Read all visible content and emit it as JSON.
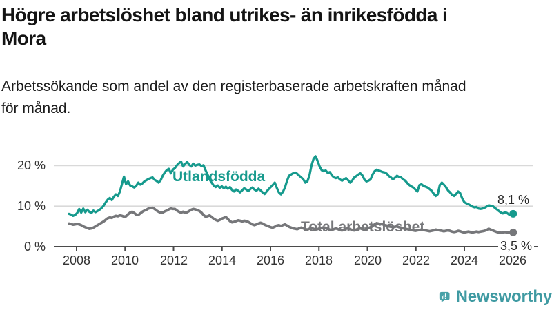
{
  "title": {
    "lines": [
      "Högre arbetslöshet bland utrikes- än inrikesfödda i",
      "Mora"
    ]
  },
  "subtitle": {
    "lines": [
      "Arbetssökande som andel av den registerbaserade arbetskraften månad",
      "för månad."
    ]
  },
  "chart_data": {
    "type": "line",
    "unit": "%",
    "x_range_years": [
      2007.7,
      2026.1
    ],
    "ylim": [
      0,
      24
    ],
    "grid": "horizontal",
    "legend_position": "inline-labels",
    "x_ticks": [
      "2008",
      "2010",
      "2012",
      "2014",
      "2016",
      "2018",
      "2020",
      "2022",
      "2024",
      "2026"
    ],
    "y_ticks": [
      {
        "value": 0,
        "label": "0 %"
      },
      {
        "value": 10,
        "label": "10 %"
      },
      {
        "value": 20,
        "label": "20 %"
      }
    ],
    "series": [
      {
        "name": "Utlandsfödda",
        "color": "#169a8d",
        "end_label": "8,1 %",
        "last_value": 8.1,
        "values": [
          8.1,
          7.9,
          7.6,
          7.8,
          8.3,
          9.3,
          8.4,
          9.4,
          8.5,
          9.1,
          8.6,
          8.3,
          8.9,
          8.5,
          8.8,
          9.1,
          9.5,
          10.1,
          10.9,
          11.6,
          12.0,
          11.5,
          12.3,
          12.9,
          12.5,
          13.6,
          15.5,
          17.3,
          15.4,
          16.1,
          15.1,
          14.9,
          14.6,
          15.0,
          15.8,
          15.3,
          15.6,
          16.1,
          16.4,
          16.7,
          16.9,
          17.1,
          16.5,
          16.2,
          15.8,
          16.4,
          17.5,
          18.3,
          18.9,
          19.2,
          18.1,
          19.0,
          19.4,
          20.1,
          20.6,
          21.0,
          19.8,
          20.4,
          20.9,
          20.2,
          19.8,
          20.5,
          20.0,
          20.2,
          20.3,
          19.9,
          20.1,
          18.9,
          17.8,
          16.6,
          15.8,
          15.1,
          14.7,
          15.1,
          14.5,
          14.9,
          14.4,
          14.8,
          14.3,
          14.7,
          14.0,
          13.6,
          14.1,
          13.8,
          13.4,
          13.9,
          14.4,
          14.1,
          13.7,
          14.2,
          14.6,
          14.1,
          13.8,
          14.3,
          13.9,
          13.4,
          13.0,
          13.6,
          14.2,
          14.7,
          15.2,
          15.8,
          14.5,
          13.4,
          12.9,
          13.5,
          14.6,
          16.2,
          17.5,
          17.8,
          18.1,
          18.3,
          18.0,
          17.5,
          17.1,
          16.6,
          15.8,
          16.1,
          17.5,
          20.0,
          21.6,
          22.3,
          21.2,
          19.8,
          18.9,
          18.6,
          18.8,
          18.2,
          18.4,
          17.6,
          17.1,
          16.9,
          17.1,
          16.6,
          16.3,
          16.6,
          16.9,
          16.4,
          15.8,
          16.3,
          17.1,
          17.4,
          17.8,
          18.1,
          17.6,
          16.6,
          16.1,
          16.3,
          16.6,
          17.8,
          18.6,
          19.0,
          18.8,
          18.6,
          18.4,
          18.3,
          18.0,
          17.4,
          17.1,
          16.6,
          17.0,
          17.5,
          17.2,
          17.1,
          16.6,
          16.3,
          15.7,
          15.2,
          14.9,
          14.6,
          14.1,
          13.6,
          15.2,
          15.4,
          15.0,
          14.8,
          14.6,
          14.2,
          13.8,
          13.1,
          12.5,
          12.9,
          15.2,
          15.8,
          15.3,
          14.7,
          13.9,
          13.4,
          12.8,
          12.5,
          13.0,
          13.6,
          13.2,
          11.9,
          11.0,
          10.7,
          10.5,
          10.2,
          9.9,
          9.7,
          9.8,
          9.4,
          9.3,
          9.4,
          9.6,
          9.9,
          10.2,
          10.1,
          10.0,
          9.6,
          9.2,
          8.8,
          8.4,
          8.2,
          8.5,
          8.3,
          7.9,
          7.8,
          8.1
        ]
      },
      {
        "name": "Total arbetslöshet",
        "color": "#76777a",
        "end_label": "3,5 %",
        "last_value": 3.5,
        "values": [
          5.7,
          5.6,
          5.4,
          5.5,
          5.6,
          5.5,
          5.3,
          5.0,
          4.8,
          4.6,
          4.4,
          4.5,
          4.7,
          5.0,
          5.3,
          5.6,
          5.9,
          6.2,
          6.6,
          7.0,
          7.2,
          7.1,
          7.4,
          7.6,
          7.5,
          7.7,
          7.6,
          7.4,
          7.5,
          8.0,
          8.4,
          8.6,
          8.3,
          7.9,
          7.8,
          8.2,
          8.6,
          8.9,
          9.1,
          9.4,
          9.5,
          9.6,
          9.3,
          8.9,
          8.6,
          8.3,
          8.4,
          8.7,
          8.9,
          9.2,
          9.4,
          9.3,
          9.3,
          8.9,
          8.6,
          8.4,
          8.6,
          8.3,
          8.5,
          8.8,
          9.1,
          9.3,
          9.2,
          9.0,
          8.8,
          8.4,
          7.8,
          7.4,
          7.5,
          7.7,
          7.3,
          6.9,
          6.6,
          6.4,
          6.6,
          6.9,
          7.1,
          7.3,
          6.8,
          6.3,
          6.0,
          6.1,
          6.3,
          6.5,
          6.4,
          6.2,
          6.4,
          6.3,
          6.1,
          5.8,
          5.5,
          5.3,
          5.5,
          5.7,
          5.9,
          5.7,
          5.4,
          5.2,
          5.0,
          4.8,
          4.7,
          4.9,
          5.2,
          5.3,
          5.1,
          5.3,
          5.5,
          5.2,
          4.9,
          4.7,
          4.5,
          4.4,
          4.3,
          4.5,
          4.7,
          4.5,
          4.3,
          4.2,
          4.4,
          4.6,
          4.4,
          4.2,
          4.3,
          4.5,
          4.6,
          4.8,
          4.6,
          4.4,
          4.2,
          4.1,
          4.3,
          4.5,
          4.3,
          4.1,
          4.0,
          4.2,
          4.4,
          4.5,
          4.3,
          4.1,
          4.0,
          4.2,
          4.4,
          4.5,
          4.3,
          4.2,
          4.4,
          4.6,
          4.8,
          5.0,
          5.5,
          5.8,
          5.7,
          5.6,
          5.5,
          5.3,
          5.2,
          5.0,
          4.9,
          4.8,
          4.9,
          5.0,
          4.8,
          4.7,
          4.5,
          4.4,
          4.3,
          4.2,
          4.1,
          4.0,
          3.9,
          4.0,
          4.1,
          4.2,
          4.1,
          4.0,
          3.9,
          3.8,
          3.9,
          4.0,
          4.2,
          4.1,
          4.0,
          3.9,
          3.8,
          3.9,
          4.0,
          3.9,
          3.7,
          3.6,
          3.7,
          3.9,
          3.8,
          3.6,
          3.5,
          3.6,
          3.7,
          3.6,
          3.5,
          3.6,
          3.7,
          3.6,
          3.7,
          3.8,
          3.9,
          4.1,
          4.4,
          4.2,
          4.0,
          3.8,
          3.6,
          3.5,
          3.4,
          3.5,
          3.6,
          3.5,
          3.4,
          3.5,
          3.5
        ]
      }
    ]
  },
  "branding": {
    "logo_text": "Newsworthy",
    "logo_color": "#48a2a8",
    "text_color": "#3f9aa2"
  },
  "colors": {
    "gridline": "#d9d9d9",
    "axis": "#4b4b4b",
    "tick_text": "#333333",
    "title_text": "#141414"
  }
}
